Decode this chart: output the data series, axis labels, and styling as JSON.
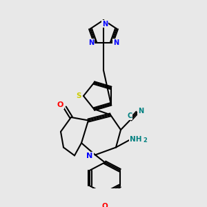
{
  "background_color": "#e8e8e8",
  "bond_color": "#000000",
  "atom_colors": {
    "N": "#0000ff",
    "O": "#ff0000",
    "S": "#cccc00",
    "C_cyan": "#008080",
    "NH2": "#008080"
  }
}
